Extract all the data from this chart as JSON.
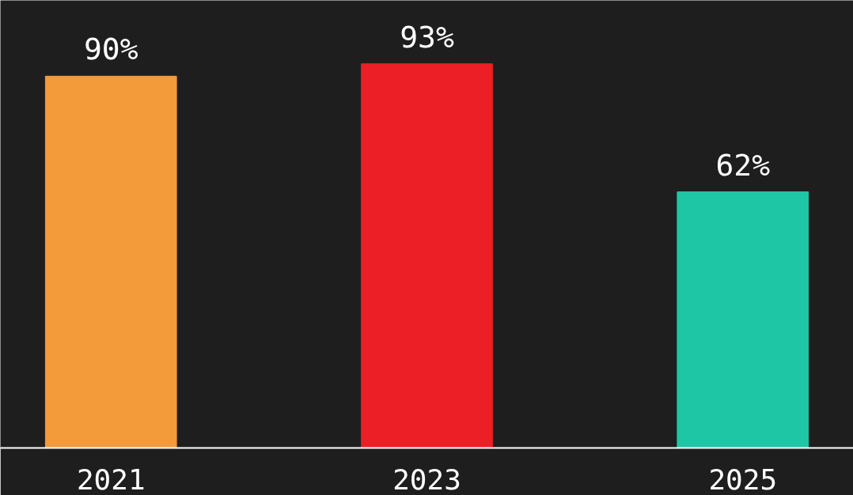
{
  "chart_data": {
    "type": "bar",
    "categories": [
      "2021",
      "2023",
      "2025"
    ],
    "values": [
      90,
      93,
      62
    ],
    "colors": [
      "#f39a3b",
      "#ec1f26",
      "#1fc6a6"
    ],
    "value_labels": [
      "90%",
      "93%",
      "62%"
    ],
    "grid": false
  }
}
